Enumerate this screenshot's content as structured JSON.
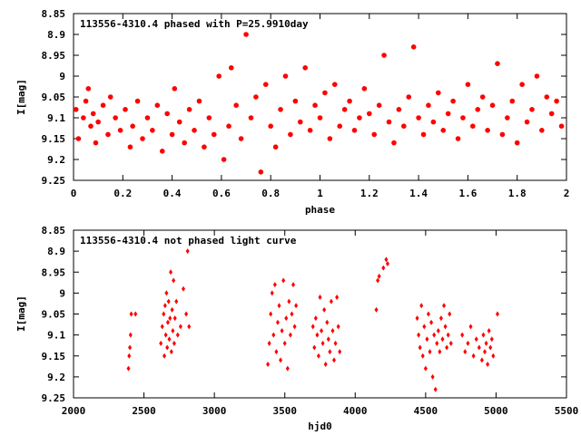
{
  "chart_data": [
    {
      "type": "scatter",
      "title": "113556-4310.4 phased with P=25.9910day",
      "xlabel": "phase",
      "ylabel": "I[mag]",
      "xlim": [
        0,
        2
      ],
      "ylim": [
        9.25,
        8.85
      ],
      "y_inverted": true,
      "xticks": [
        "0",
        "0.2",
        "0.4",
        "0.6",
        "0.8",
        "1",
        "1.2",
        "1.4",
        "1.6",
        "1.8",
        "2"
      ],
      "yticks": [
        "8.85",
        "8.9",
        "8.95",
        "9",
        "9.05",
        "9.1",
        "9.15",
        "9.2",
        "9.25"
      ],
      "marker_color": "#ff0000",
      "marker": "filled-circle",
      "grid": false,
      "series": [
        {
          "x": [
            0.01,
            0.02,
            0.04,
            0.05,
            0.06,
            0.07,
            0.08,
            0.09,
            0.1,
            0.12,
            0.14,
            0.15,
            0.17,
            0.19,
            0.21,
            0.23,
            0.24,
            0.26,
            0.28,
            0.3,
            0.32,
            0.34,
            0.36,
            0.38,
            0.4,
            0.41,
            0.43,
            0.45,
            0.47,
            0.49,
            0.51,
            0.53,
            0.55,
            0.57,
            0.59,
            0.61,
            0.63,
            0.64,
            0.66,
            0.68,
            0.7,
            0.72,
            0.74,
            0.76,
            0.78,
            0.8,
            0.82,
            0.84,
            0.86,
            0.88,
            0.9,
            0.92,
            0.94,
            0.96,
            0.98,
            1.0,
            1.02,
            1.04,
            1.06,
            1.08,
            1.1,
            1.12,
            1.14,
            1.16,
            1.18,
            1.2,
            1.22,
            1.24,
            1.26,
            1.28,
            1.3,
            1.32,
            1.34,
            1.36,
            1.38,
            1.4,
            1.42,
            1.44,
            1.46,
            1.48,
            1.5,
            1.52,
            1.54,
            1.56,
            1.58,
            1.6,
            1.62,
            1.64,
            1.66,
            1.68,
            1.7,
            1.72,
            1.74,
            1.76,
            1.78,
            1.8,
            1.82,
            1.84,
            1.86,
            1.88,
            1.9,
            1.92,
            1.94,
            1.96,
            1.98
          ],
          "y": [
            9.08,
            9.15,
            9.1,
            9.06,
            9.03,
            9.12,
            9.09,
            9.16,
            9.11,
            9.07,
            9.14,
            9.05,
            9.1,
            9.13,
            9.08,
            9.17,
            9.12,
            9.06,
            9.15,
            9.1,
            9.13,
            9.07,
            9.18,
            9.09,
            9.14,
            9.03,
            9.11,
            9.16,
            9.08,
            9.13,
            9.06,
            9.17,
            9.1,
            9.14,
            9.0,
            9.2,
            9.12,
            8.98,
            9.07,
            9.15,
            8.9,
            9.1,
            9.05,
            9.23,
            9.02,
            9.12,
            9.17,
            9.08,
            9.0,
            9.14,
            9.06,
            9.11,
            8.98,
            9.13,
            9.07,
            9.1,
            9.04,
            9.15,
            9.02,
            9.12,
            9.08,
            9.06,
            9.13,
            9.1,
            9.03,
            9.09,
            9.14,
            9.07,
            8.95,
            9.11,
            9.16,
            9.08,
            9.12,
            9.05,
            8.93,
            9.1,
            9.14,
            9.07,
            9.11,
            9.04,
            9.13,
            9.09,
            9.06,
            9.15,
            9.1,
            9.02,
            9.12,
            9.08,
            9.05,
            9.13,
            9.07,
            8.97,
            9.14,
            9.1,
            9.06,
            9.16,
            9.02,
            9.11,
            9.08,
            9.0,
            9.13,
            9.05,
            9.09,
            9.06,
            9.12
          ]
        }
      ]
    },
    {
      "type": "scatter",
      "title": "113556-4310.4 not phased light curve",
      "xlabel": "hjd0",
      "ylabel": "I[mag]",
      "xlim": [
        2000,
        5500
      ],
      "ylim": [
        9.25,
        8.85
      ],
      "y_inverted": true,
      "xticks": [
        "2000",
        "2500",
        "3000",
        "3500",
        "4000",
        "4500",
        "5000",
        "5500"
      ],
      "yticks": [
        "8.85",
        "8.9",
        "8.95",
        "9",
        "9.05",
        "9.1",
        "9.15",
        "9.2",
        "9.25"
      ],
      "marker_color": "#ff0000",
      "marker": "filled-diamond",
      "grid": false,
      "series": [
        {
          "x": [
            2390,
            2395,
            2400,
            2405,
            2410,
            2440,
            2620,
            2630,
            2640,
            2645,
            2650,
            2655,
            2660,
            2665,
            2670,
            2675,
            2680,
            2685,
            2690,
            2695,
            2700,
            2705,
            2710,
            2715,
            2720,
            2730,
            2740,
            2760,
            2780,
            2800,
            2810,
            2820,
            3380,
            3390,
            3400,
            3410,
            3420,
            3430,
            3440,
            3450,
            3460,
            3470,
            3480,
            3490,
            3500,
            3510,
            3520,
            3530,
            3540,
            3550,
            3560,
            3570,
            3580,
            3700,
            3710,
            3720,
            3730,
            3740,
            3750,
            3760,
            3770,
            3780,
            3790,
            3800,
            3810,
            3820,
            3830,
            3840,
            3850,
            3860,
            3870,
            3880,
            3890,
            4150,
            4160,
            4170,
            4200,
            4220,
            4230,
            4440,
            4450,
            4460,
            4470,
            4480,
            4490,
            4500,
            4510,
            4520,
            4530,
            4540,
            4550,
            4560,
            4570,
            4580,
            4590,
            4600,
            4610,
            4620,
            4630,
            4640,
            4650,
            4660,
            4670,
            4680,
            4760,
            4780,
            4800,
            4820,
            4840,
            4860,
            4880,
            4900,
            4910,
            4920,
            4930,
            4940,
            4950,
            4960,
            4970,
            4980,
            5010
          ],
          "y": [
            9.18,
            9.15,
            9.13,
            9.1,
            9.05,
            9.05,
            9.12,
            9.08,
            9.05,
            9.15,
            9.03,
            9.1,
            9.0,
            9.13,
            9.07,
            9.02,
            9.11,
            9.06,
            8.95,
            9.14,
            9.04,
            9.09,
            8.97,
            9.12,
            9.06,
            9.02,
            9.1,
            9.08,
            8.99,
            9.05,
            8.9,
            9.08,
            9.17,
            9.12,
            9.05,
            9.0,
            9.1,
            8.98,
            9.14,
            9.07,
            9.03,
            9.16,
            9.09,
            8.97,
            9.12,
            9.06,
            9.18,
            9.02,
            9.1,
            9.05,
            8.98,
            9.08,
            9.03,
            9.08,
            9.13,
            9.06,
            9.1,
            9.15,
            9.01,
            9.09,
            9.12,
            9.04,
            9.17,
            9.07,
            9.11,
            9.14,
            9.02,
            9.09,
            9.16,
            9.12,
            9.01,
            9.08,
            9.14,
            9.04,
            8.97,
            8.96,
            8.94,
            8.92,
            8.93,
            9.06,
            9.1,
            9.13,
            9.03,
            9.15,
            9.08,
            9.18,
            9.11,
            9.05,
            9.14,
            9.07,
            9.2,
            9.1,
            9.23,
            9.12,
            9.09,
            9.14,
            9.06,
            9.11,
            9.03,
            9.08,
            9.13,
            9.1,
            9.05,
            9.12,
            9.1,
            9.14,
            9.12,
            9.08,
            9.15,
            9.11,
            9.13,
            9.16,
            9.1,
            9.14,
            9.12,
            9.17,
            9.09,
            9.13,
            9.11,
            9.15,
            9.05
          ]
        }
      ]
    }
  ]
}
